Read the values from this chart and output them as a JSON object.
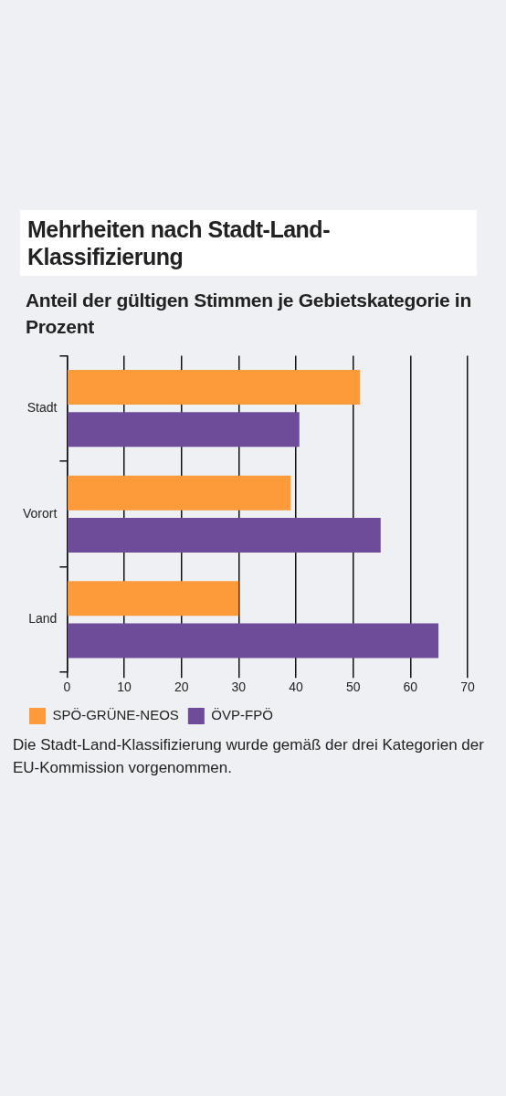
{
  "chart_data": {
    "type": "bar",
    "orientation": "horizontal",
    "title": "Mehrheiten nach Stadt-Land-Klassifizierung",
    "subtitle": "Anteil der gültigen Stimmen je Gebietskategorie in Prozent",
    "categories": [
      "Stadt",
      "Vorort",
      "Land"
    ],
    "series": [
      {
        "name": "SPÖ-GRÜNE-NEOS",
        "color": "#fd9a3a",
        "values": [
          51.2,
          39.1,
          30.0
        ]
      },
      {
        "name": "ÖVP-FPÖ",
        "color": "#6e4c9a",
        "values": [
          40.6,
          54.8,
          64.9
        ]
      }
    ],
    "xlim": [
      0,
      70
    ],
    "xticks": [
      0,
      10,
      20,
      30,
      40,
      50,
      60,
      70
    ],
    "grid": "x",
    "legend": "bottom left",
    "annotations": [
      "Die Stadt-Land-Klassifizierung wurde gemäß der drei Kategorien der EU-Kommission vorgenommen."
    ]
  }
}
